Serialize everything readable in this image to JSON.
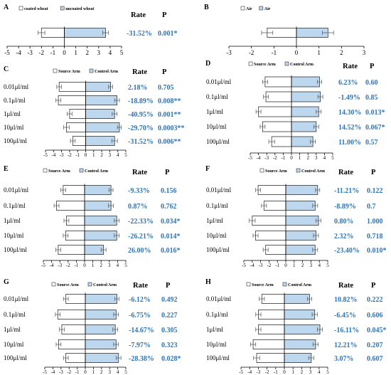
{
  "colors": {
    "source": "#ffffff",
    "control": "#bdd7ee",
    "stroke": "#333333",
    "value_text": "#2e75b6"
  },
  "chart_data": [
    {
      "id": "A",
      "type": "bar",
      "orientation": "horizontal-diverging",
      "legend": [
        "coated wheat",
        "uncoated wheat"
      ],
      "legend_position": "top",
      "headers": {
        "rate": "Rate",
        "p": "P"
      },
      "xlim": [
        -5,
        5
      ],
      "xticks": [
        -5,
        -4,
        -3,
        -2,
        -1,
        0,
        1,
        2,
        3,
        4,
        5
      ],
      "categories": [
        ""
      ],
      "series": [
        {
          "name": "coated wheat",
          "values": [
            -2.0
          ],
          "errors": [
            0.3
          ]
        },
        {
          "name": "uncoated wheat",
          "values": [
            3.6
          ],
          "errors": [
            0.25
          ]
        }
      ],
      "rates": [
        "-31.52%"
      ],
      "p_values": [
        "0.001*"
      ]
    },
    {
      "id": "B",
      "type": "bar",
      "orientation": "horizontal-diverging",
      "legend": [
        "Air",
        "Air"
      ],
      "legend_position": "top",
      "xlim": [
        -3,
        3
      ],
      "xticks": [
        -3,
        -2,
        -1,
        0,
        1,
        2,
        3
      ],
      "categories": [
        ""
      ],
      "series": [
        {
          "name": "Air",
          "values": [
            -1.3
          ],
          "errors": [
            0.25
          ]
        },
        {
          "name": "Air",
          "values": [
            1.4
          ],
          "errors": [
            0.25
          ]
        }
      ]
    },
    {
      "id": "C",
      "type": "bar",
      "orientation": "horizontal-diverging",
      "legend": [
        "Source Arm",
        "Control Arm"
      ],
      "legend_position": "top",
      "headers": {
        "rate": "Rate",
        "p": "P"
      },
      "xlim": [
        -5,
        5
      ],
      "xticks": [
        -5,
        -4,
        -3,
        -2,
        -1,
        0,
        1,
        2,
        3,
        4,
        5
      ],
      "categories": [
        "0.01μl/ml",
        "0.1μl/ml",
        "1μl/ml",
        "10μl/ml",
        "100μl/ml"
      ],
      "series": [
        {
          "name": "Source Arm",
          "values": [
            -3.3,
            -3.4,
            -2.0,
            -2.4,
            -1.6
          ],
          "errors": [
            0.3,
            0.3,
            0.3,
            0.35,
            0.3
          ]
        },
        {
          "name": "Control Arm",
          "values": [
            3.1,
            3.9,
            3.6,
            4.2,
            3.6
          ],
          "errors": [
            0.25,
            0.3,
            0.3,
            0.25,
            0.35
          ]
        }
      ],
      "rates": [
        "2.18%",
        "-18.89%",
        "-40.95%",
        "-29.70%",
        "-31.52%"
      ],
      "p_values": [
        "0.705",
        "0.008**",
        "0.001**",
        "0.0003**",
        "0.006**"
      ]
    },
    {
      "id": "D",
      "type": "bar",
      "orientation": "horizontal-diverging",
      "legend": [
        "Source Arm",
        "Control Arm"
      ],
      "legend_position": "top",
      "headers": {
        "rate": "Rate",
        "p": "P"
      },
      "xlim": [
        -5,
        5
      ],
      "xticks": [
        -5,
        -4,
        -3,
        -2,
        -1,
        0,
        1,
        2,
        3,
        4,
        5
      ],
      "categories": [
        "0.01μl/ml",
        "0.1μl/ml",
        "1μl/ml",
        "10μl/ml",
        "100μl/ml"
      ],
      "series": [
        {
          "name": "Source Arm",
          "values": [
            -3.2,
            -3.1,
            -4.0,
            -3.5,
            -2.4
          ],
          "errors": [
            0.3,
            0.3,
            0.3,
            0.3,
            0.35
          ]
        },
        {
          "name": "Control Arm",
          "values": [
            3.4,
            3.5,
            3.3,
            3.0,
            2.6
          ],
          "errors": [
            0.25,
            0.3,
            0.3,
            0.3,
            0.3
          ]
        }
      ],
      "rates": [
        "6.23%",
        "-1.49%",
        "14.30%",
        "14.52%",
        "11.00%"
      ],
      "p_values": [
        "0.60",
        "0.85",
        "0.013*",
        "0.067*",
        "0.57"
      ]
    },
    {
      "id": "E",
      "type": "bar",
      "orientation": "horizontal-diverging",
      "legend": [
        "Source Arm",
        "Control Arm"
      ],
      "legend_position": "top",
      "headers": {
        "rate": "Rate",
        "p": "P"
      },
      "xlim": [
        -5,
        5
      ],
      "xticks": [
        -5,
        -4,
        -3,
        -2,
        -1,
        0,
        1,
        2,
        3,
        4,
        5
      ],
      "categories": [
        "0.01μl/ml",
        "0.1μl/ml",
        "1μl/ml",
        "10μl/ml",
        "100μl/ml"
      ],
      "series": [
        {
          "name": "Source Arm",
          "values": [
            -2.6,
            -3.4,
            -2.2,
            -2.3,
            -3.2
          ],
          "errors": [
            0.3,
            0.3,
            0.3,
            0.3,
            0.3
          ]
        },
        {
          "name": "Control Arm",
          "values": [
            3.2,
            3.2,
            3.9,
            3.9,
            2.3
          ],
          "errors": [
            0.25,
            0.3,
            0.3,
            0.3,
            0.3
          ]
        }
      ],
      "rates": [
        "-9.33%",
        "0.87%",
        "-22.33%",
        "-26.21%",
        "26.00%"
      ],
      "p_values": [
        "0.156",
        "0.762",
        "0.034*",
        "0.014*",
        "0.016*"
      ]
    },
    {
      "id": "F",
      "type": "bar",
      "orientation": "horizontal-diverging",
      "legend": [
        "Source Arm",
        "Control Arm"
      ],
      "legend_position": "top",
      "headers": {
        "rate": "Rate",
        "p": "P"
      },
      "xlim": [
        -5,
        5
      ],
      "xticks": [
        -5,
        -4,
        -3,
        -2,
        -1,
        0,
        1,
        2,
        3,
        4,
        5
      ],
      "categories": [
        "0.01μl/ml",
        "0.1μl/ml",
        "1μl/ml",
        "10μl/ml",
        "100μl/ml"
      ],
      "series": [
        {
          "name": "Source Arm",
          "values": [
            -3.3,
            -2.6,
            -4.0,
            -3.6,
            -2.4
          ],
          "errors": [
            0.3,
            0.3,
            0.35,
            0.3,
            0.3
          ]
        },
        {
          "name": "Control Arm",
          "values": [
            3.8,
            3.5,
            3.9,
            3.6,
            3.5
          ],
          "errors": [
            0.25,
            0.3,
            0.3,
            0.3,
            0.3
          ]
        }
      ],
      "rates": [
        "-11.21%",
        "-8.89%",
        "0.80%",
        "2.32%",
        "-23.40%"
      ],
      "p_values": [
        "0.122",
        "0.7",
        "1.000",
        "0.718",
        "0.010*"
      ]
    },
    {
      "id": "G",
      "type": "bar",
      "orientation": "horizontal-diverging",
      "legend": [
        "Source Arm",
        "Control Arm"
      ],
      "legend_position": "top",
      "headers": {
        "rate": "Rate",
        "p": "P"
      },
      "xlim": [
        -5,
        5
      ],
      "xticks": [
        -5,
        -4,
        -3,
        -2,
        -1,
        0,
        1,
        2,
        3,
        4,
        5
      ],
      "categories": [
        "0.01μl/ml",
        "0.1μl/ml",
        "1μl/ml",
        "10μl/ml",
        "100μl/ml"
      ],
      "series": [
        {
          "name": "Source Arm",
          "values": [
            -2.4,
            -3.4,
            -2.9,
            -3.3,
            -2.4
          ],
          "errors": [
            0.3,
            0.3,
            0.3,
            0.3,
            0.3
          ]
        },
        {
          "name": "Control Arm",
          "values": [
            3.9,
            3.8,
            3.7,
            3.8,
            4.1
          ],
          "errors": [
            0.25,
            0.3,
            0.3,
            0.3,
            0.3
          ]
        }
      ],
      "rates": [
        "-6.12%",
        "-6.75%",
        "-14.67%",
        "-7.97%",
        "-28.38%"
      ],
      "p_values": [
        "0.492",
        "0.227",
        "0.305",
        "0.323",
        "0.028*"
      ]
    },
    {
      "id": "H",
      "type": "bar",
      "orientation": "horizontal-diverging",
      "legend": [
        "Source Arm",
        "Control Arm"
      ],
      "legend_position": "top",
      "headers": {
        "rate": "Rate",
        "p": "P"
      },
      "xlim": [
        -5,
        5
      ],
      "xticks": [
        -5,
        -4,
        -3,
        -2,
        -1,
        0,
        1,
        2,
        3,
        4,
        5
      ],
      "categories": [
        "0.01μl/ml",
        "0.1μl/ml",
        "1μl/ml",
        "10μl/ml",
        "100μl/ml"
      ],
      "series": [
        {
          "name": "Source Arm",
          "values": [
            -2.6,
            -3.0,
            -3.0,
            -3.6,
            -3.2
          ],
          "errors": [
            0.3,
            0.3,
            0.3,
            0.3,
            0.35
          ]
        },
        {
          "name": "Control Arm",
          "values": [
            2.9,
            3.5,
            4.1,
            3.6,
            3.1
          ],
          "errors": [
            0.25,
            0.3,
            0.3,
            0.3,
            0.3
          ]
        }
      ],
      "rates": [
        "10.82%",
        "-6.45%",
        "-16.11%",
        "12.21%",
        "3.07%"
      ],
      "p_values": [
        "0.222",
        "0.606",
        "0.045*",
        "0.207",
        "0.607"
      ]
    }
  ]
}
